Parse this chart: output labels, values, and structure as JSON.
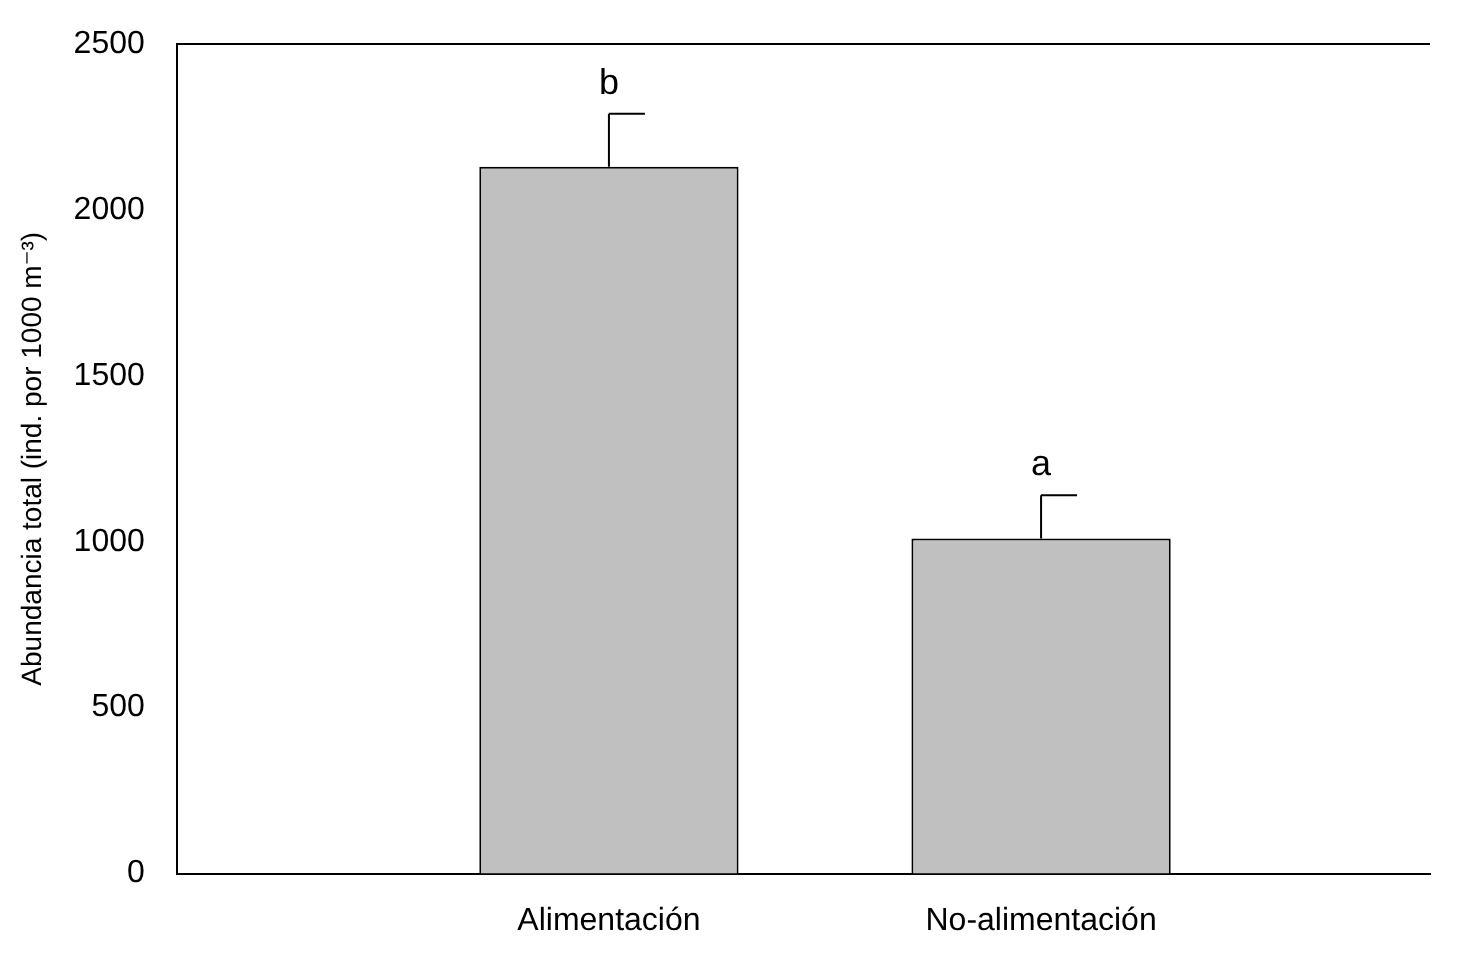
{
  "chart_data": {
    "type": "bar",
    "ylabel": "Abundancia total (ind. por 1000 m⁻³)",
    "categories": [
      "Alimentación",
      "No-alimentación"
    ],
    "values": [
      2130,
      1010
    ],
    "errors": [
      160,
      130
    ],
    "color": "#c0c0c0",
    "ylim": [
      0,
      2500
    ],
    "yticks": [
      0,
      500,
      1000,
      1500,
      2000,
      2500
    ],
    "grid": false,
    "legend": false,
    "annotations": [
      "b",
      "a"
    ]
  }
}
